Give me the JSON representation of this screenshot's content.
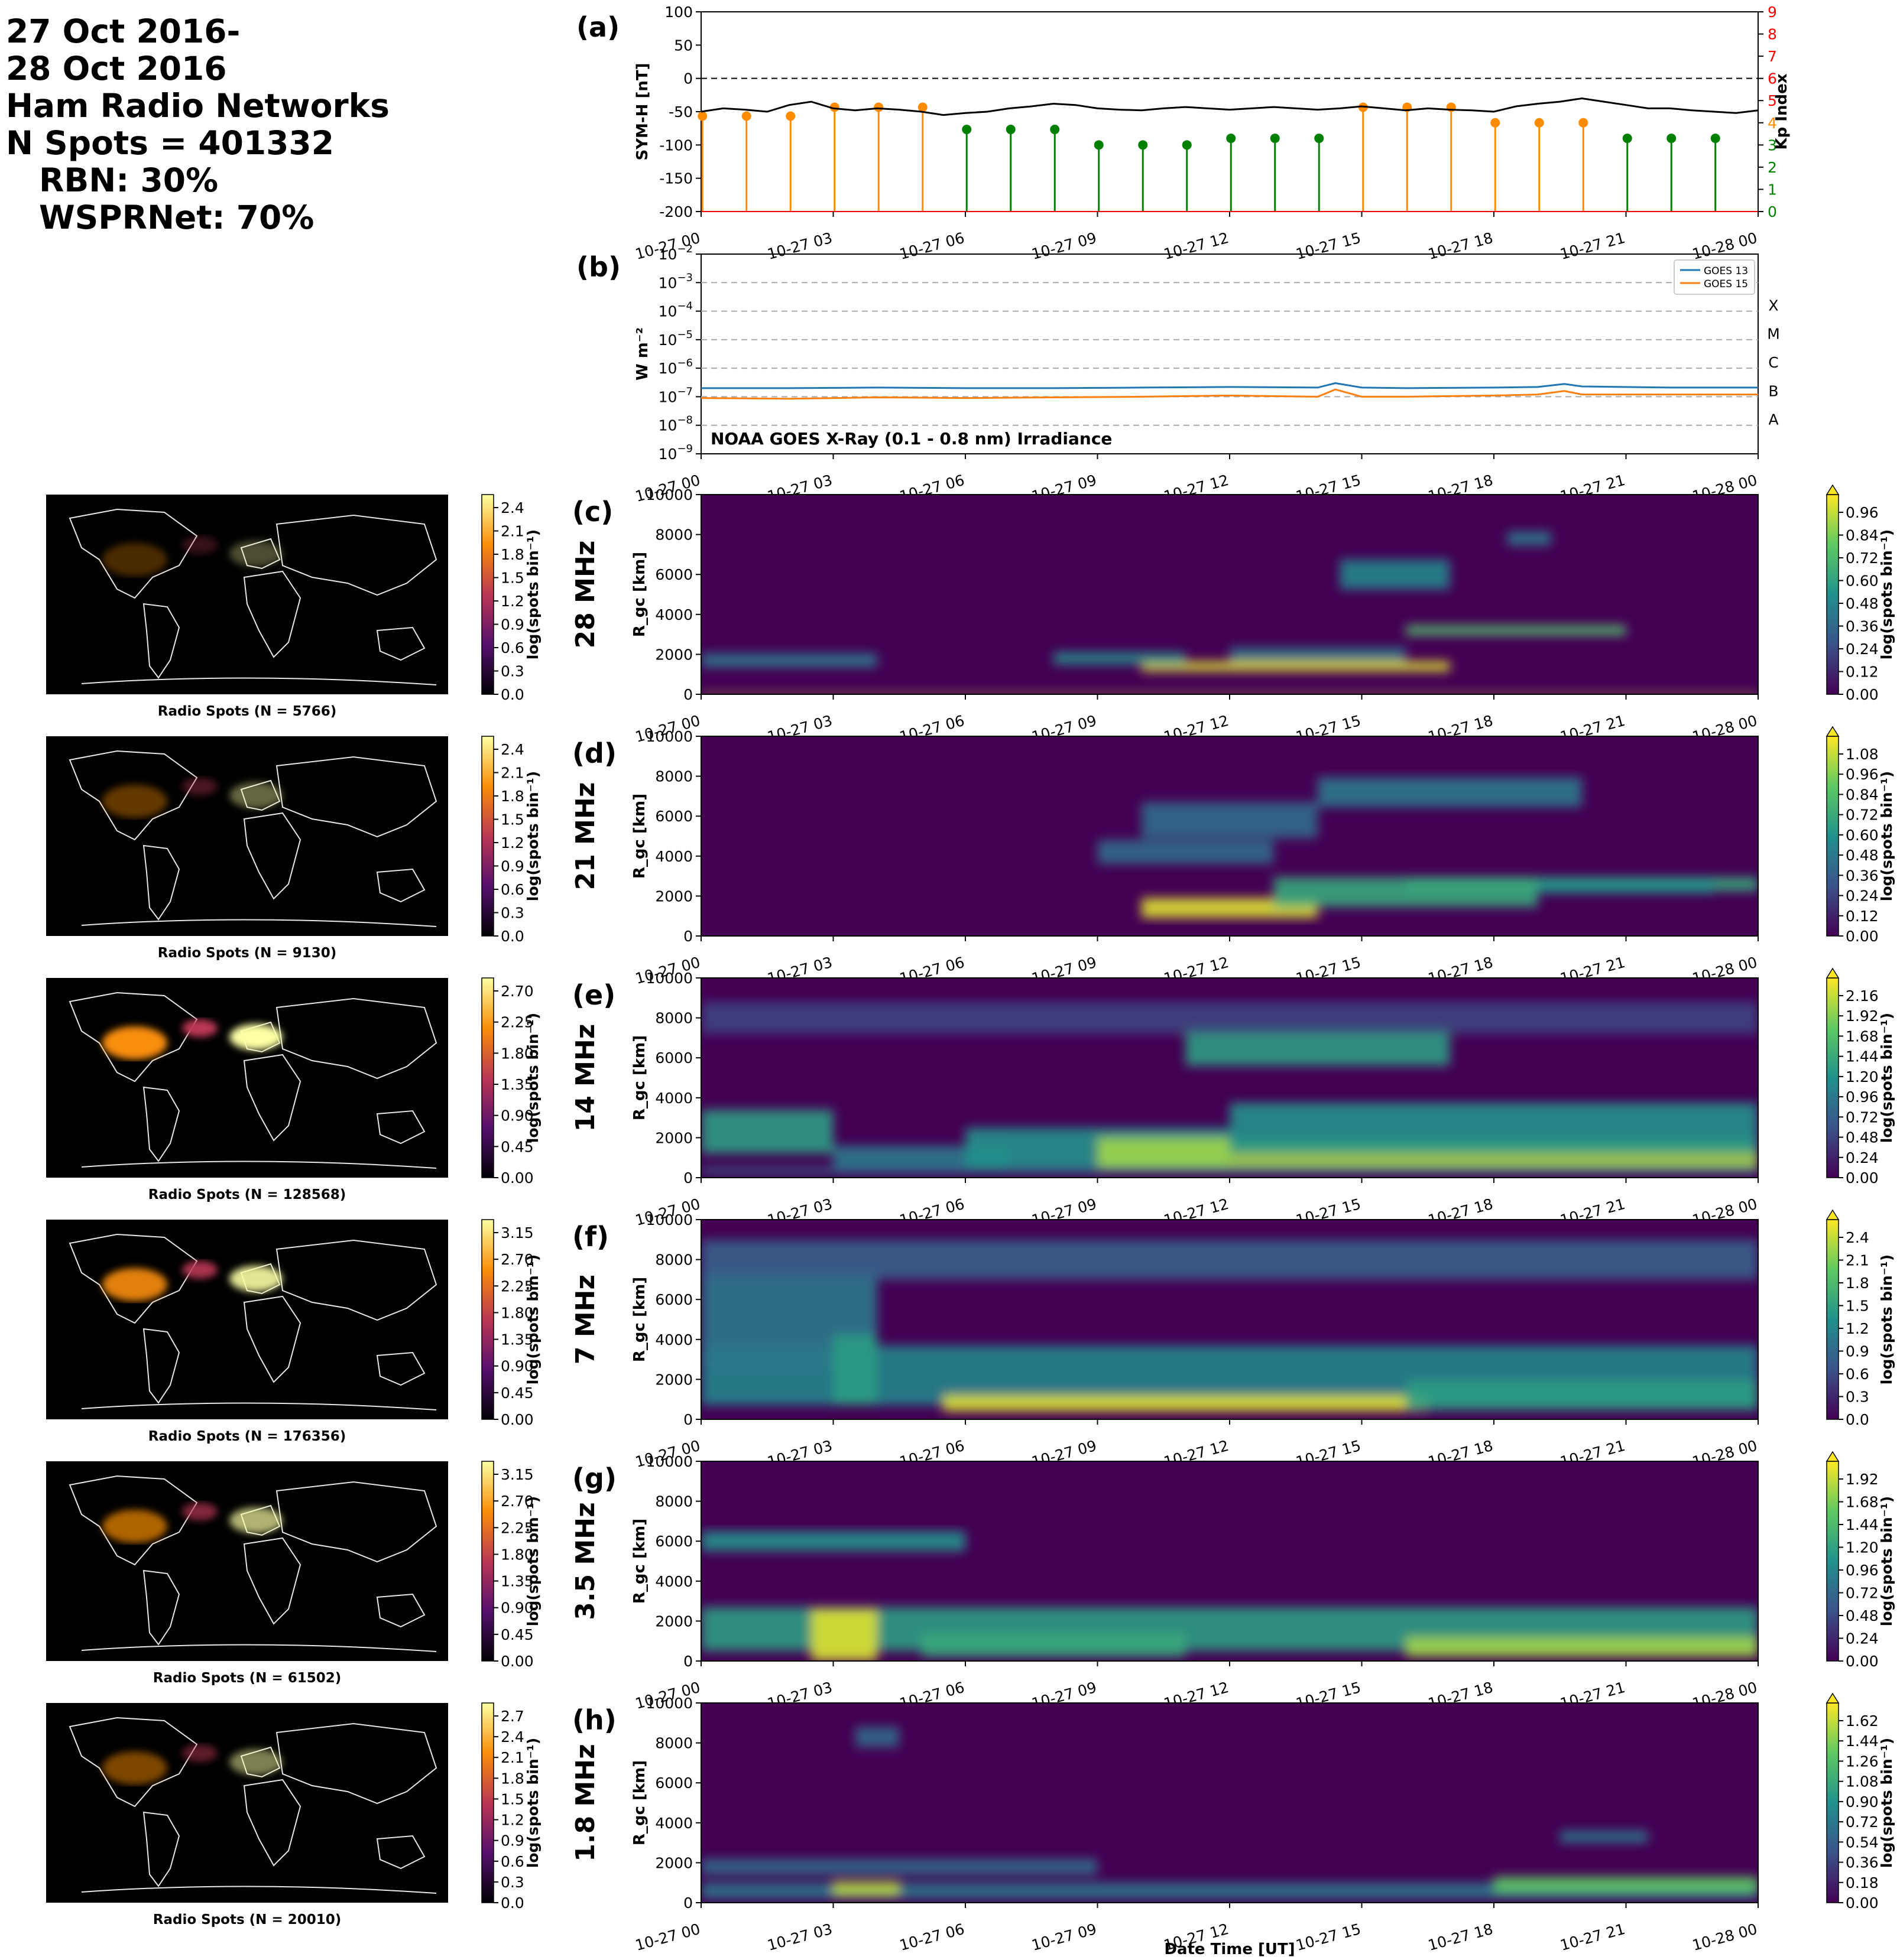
{
  "header": {
    "date_start": "27 Oct 2016-",
    "date_end": "28 Oct 2016",
    "network": "Ham Radio Networks",
    "n_spots": "N Spots = 401332",
    "rbn": "RBN: 30%",
    "wsprnet": "WSPRNet: 70%"
  },
  "time_ticks": [
    "10-27 00",
    "10-27 03",
    "10-27 06",
    "10-27 09",
    "10-27 12",
    "10-27 15",
    "10-27 18",
    "10-27 21",
    "10-28 00"
  ],
  "xlabel": "Date Time [UT]",
  "chart_data": [
    {
      "id": "a",
      "type": "line+stem",
      "panel_label": "(a)",
      "ylabel": "SYM-H [nT]",
      "ylabel_right": "Kp Index",
      "ylim": [
        -200,
        100
      ],
      "ylim_right": [
        0,
        9
      ],
      "yticks": [
        "100",
        "50",
        "0",
        "-50",
        "-100",
        "-150",
        "-200"
      ],
      "yticks_right": [
        "9",
        "8",
        "7",
        "6",
        "5",
        "4",
        "3",
        "2",
        "1",
        "0"
      ],
      "symh_x_hours": [
        0,
        0.5,
        1,
        1.5,
        2,
        2.5,
        3,
        3.5,
        4,
        4.5,
        5,
        5.5,
        6,
        6.5,
        7,
        7.5,
        8,
        8.5,
        9,
        9.5,
        10,
        10.5,
        11,
        11.5,
        12,
        12.5,
        13,
        13.5,
        14,
        14.5,
        15,
        15.5,
        16,
        16.5,
        17,
        17.5,
        18,
        18.5,
        19,
        19.5,
        20,
        20.5,
        21,
        21.5,
        22,
        22.5,
        23,
        23.5,
        24
      ],
      "symh_values": [
        -50,
        -45,
        -47,
        -50,
        -40,
        -35,
        -45,
        -48,
        -45,
        -47,
        -50,
        -55,
        -52,
        -50,
        -45,
        -42,
        -38,
        -40,
        -45,
        -47,
        -48,
        -45,
        -43,
        -45,
        -47,
        -45,
        -43,
        -45,
        -47,
        -45,
        -42,
        -45,
        -48,
        -45,
        -47,
        -48,
        -50,
        -42,
        -38,
        -35,
        -30,
        -35,
        -40,
        -45,
        -45,
        -48,
        -50,
        -52,
        -48
      ],
      "kp_x_hours": [
        0,
        1,
        2,
        3,
        4,
        5,
        6,
        7,
        8,
        9,
        10,
        11,
        12,
        13,
        14,
        15,
        16,
        17,
        18,
        19,
        20,
        21,
        22,
        23
      ],
      "kp_values": [
        4.3,
        4.3,
        4.3,
        4.7,
        4.7,
        4.7,
        3.7,
        3.7,
        3.7,
        3.0,
        3.0,
        3.0,
        3.3,
        3.3,
        3.3,
        4.7,
        4.7,
        4.7,
        4.0,
        4.0,
        4.0,
        3.3,
        3.3,
        3.3
      ],
      "kp_colors": {
        "high": "#ff8c00",
        "low": "#008000",
        "threshold": 4
      }
    },
    {
      "id": "b",
      "type": "line",
      "panel_label": "(b)",
      "ylabel": "W m⁻²",
      "yscale": "log",
      "ylim_exp": [
        -9,
        -2
      ],
      "ytick_exps": [
        -2,
        -3,
        -4,
        -5,
        -6,
        -7,
        -8,
        -9
      ],
      "flare_classes": [
        "X",
        "M",
        "C",
        "B",
        "A"
      ],
      "annotation": "NOAA GOES X-Ray (0.1 - 0.8 nm) Irradiance",
      "series": [
        {
          "name": "GOES 13",
          "color": "#1f77b4",
          "x_hours": [
            0,
            2,
            4,
            6,
            8,
            10,
            12,
            14,
            14.4,
            15,
            16,
            18,
            19,
            19.6,
            20,
            22,
            24
          ],
          "values": [
            2e-07,
            2e-07,
            2.1e-07,
            2e-07,
            2e-07,
            2.1e-07,
            2.2e-07,
            2.1e-07,
            3e-07,
            2.1e-07,
            2e-07,
            2.1e-07,
            2.2e-07,
            2.8e-07,
            2.3e-07,
            2.1e-07,
            2.1e-07
          ]
        },
        {
          "name": "GOES 15",
          "color": "#ff7f0e",
          "x_hours": [
            0,
            2,
            4,
            6,
            8,
            10,
            12,
            14,
            14.4,
            15,
            16,
            18,
            19,
            19.6,
            20,
            22,
            24
          ],
          "values": [
            9e-08,
            8.5e-08,
            9.5e-08,
            9e-08,
            9.5e-08,
            1e-07,
            1.1e-07,
            1e-07,
            1.8e-07,
            1e-07,
            1e-07,
            1.1e-07,
            1.2e-07,
            1.6e-07,
            1.2e-07,
            1.2e-07,
            1.2e-07
          ]
        }
      ]
    },
    {
      "id": "c",
      "type": "heatmap",
      "panel_label": "(c)",
      "band": "28 MHz",
      "ylabel": "R_gc [km]",
      "ylim": [
        0,
        10000
      ],
      "yticks": [
        "10000",
        "8000",
        "6000",
        "4000",
        "2000",
        "0"
      ],
      "cbar_label": "log(spots bin⁻¹)",
      "cbar_ticks": [
        "0.96",
        "0.84",
        "0.72",
        "0.60",
        "0.48",
        "0.36",
        "0.24",
        "0.12",
        "0.00"
      ],
      "map_title": "Radio Spots (N = 5766)",
      "map_cbar_ticks": [
        "2.4",
        "2.1",
        "1.8",
        "1.5",
        "1.2",
        "0.9",
        "0.6",
        "0.3",
        "0.0"
      ]
    },
    {
      "id": "d",
      "type": "heatmap",
      "panel_label": "(d)",
      "band": "21 MHz",
      "ylabel": "R_gc [km]",
      "ylim": [
        0,
        10000
      ],
      "yticks": [
        "10000",
        "8000",
        "6000",
        "4000",
        "2000",
        "0"
      ],
      "cbar_label": "log(spots bin⁻¹)",
      "cbar_ticks": [
        "1.08",
        "0.96",
        "0.84",
        "0.72",
        "0.60",
        "0.48",
        "0.36",
        "0.24",
        "0.12",
        "0.00"
      ],
      "map_title": "Radio Spots (N = 9130)",
      "map_cbar_ticks": [
        "2.4",
        "2.1",
        "1.8",
        "1.5",
        "1.2",
        "0.9",
        "0.6",
        "0.3",
        "0.0"
      ]
    },
    {
      "id": "e",
      "type": "heatmap",
      "panel_label": "(e)",
      "band": "14 MHz",
      "ylabel": "R_gc [km]",
      "ylim": [
        0,
        10000
      ],
      "yticks": [
        "10000",
        "8000",
        "6000",
        "4000",
        "2000",
        "0"
      ],
      "cbar_label": "log(spots bin⁻¹)",
      "cbar_ticks": [
        "2.16",
        "1.92",
        "1.68",
        "1.44",
        "1.20",
        "0.96",
        "0.72",
        "0.48",
        "0.24",
        "0.00"
      ],
      "map_title": "Radio Spots (N = 128568)",
      "map_cbar_ticks": [
        "2.70",
        "2.25",
        "1.80",
        "1.35",
        "0.90",
        "0.45",
        "0.00"
      ]
    },
    {
      "id": "f",
      "type": "heatmap",
      "panel_label": "(f)",
      "band": "7 MHz",
      "ylabel": "R_gc [km]",
      "ylim": [
        0,
        10000
      ],
      "yticks": [
        "10000",
        "8000",
        "6000",
        "4000",
        "2000",
        "0"
      ],
      "cbar_label": "log(spots bin⁻¹)",
      "cbar_ticks": [
        "2.4",
        "2.1",
        "1.8",
        "1.5",
        "1.2",
        "0.9",
        "0.6",
        "0.3",
        "0.0"
      ],
      "map_title": "Radio Spots (N = 176356)",
      "map_cbar_ticks": [
        "3.15",
        "2.70",
        "2.25",
        "1.80",
        "1.35",
        "0.90",
        "0.45",
        "0.00"
      ]
    },
    {
      "id": "g",
      "type": "heatmap",
      "panel_label": "(g)",
      "band": "3.5 MHz",
      "ylabel": "R_gc [km]",
      "ylim": [
        0,
        10000
      ],
      "yticks": [
        "10000",
        "8000",
        "6000",
        "4000",
        "2000",
        "0"
      ],
      "cbar_label": "log(spots bin⁻¹)",
      "cbar_ticks": [
        "1.92",
        "1.68",
        "1.44",
        "1.20",
        "0.96",
        "0.72",
        "0.48",
        "0.24",
        "0.00"
      ],
      "map_title": "Radio Spots (N = 61502)",
      "map_cbar_ticks": [
        "3.15",
        "2.70",
        "2.25",
        "1.80",
        "1.35",
        "0.90",
        "0.45",
        "0.00"
      ]
    },
    {
      "id": "h",
      "type": "heatmap",
      "panel_label": "(h)",
      "band": "1.8 MHz",
      "ylabel": "R_gc [km]",
      "ylim": [
        0,
        10000
      ],
      "yticks": [
        "10000",
        "8000",
        "6000",
        "4000",
        "2000",
        "0"
      ],
      "cbar_label": "log(spots bin⁻¹)",
      "cbar_ticks": [
        "1.62",
        "1.44",
        "1.26",
        "1.08",
        "0.90",
        "0.72",
        "0.54",
        "0.36",
        "0.18",
        "0.00"
      ],
      "map_title": "Radio Spots (N = 20010)",
      "map_cbar_ticks": [
        "2.7",
        "2.4",
        "2.1",
        "1.8",
        "1.5",
        "1.2",
        "0.9",
        "0.6",
        "0.3",
        "0.0"
      ]
    }
  ]
}
